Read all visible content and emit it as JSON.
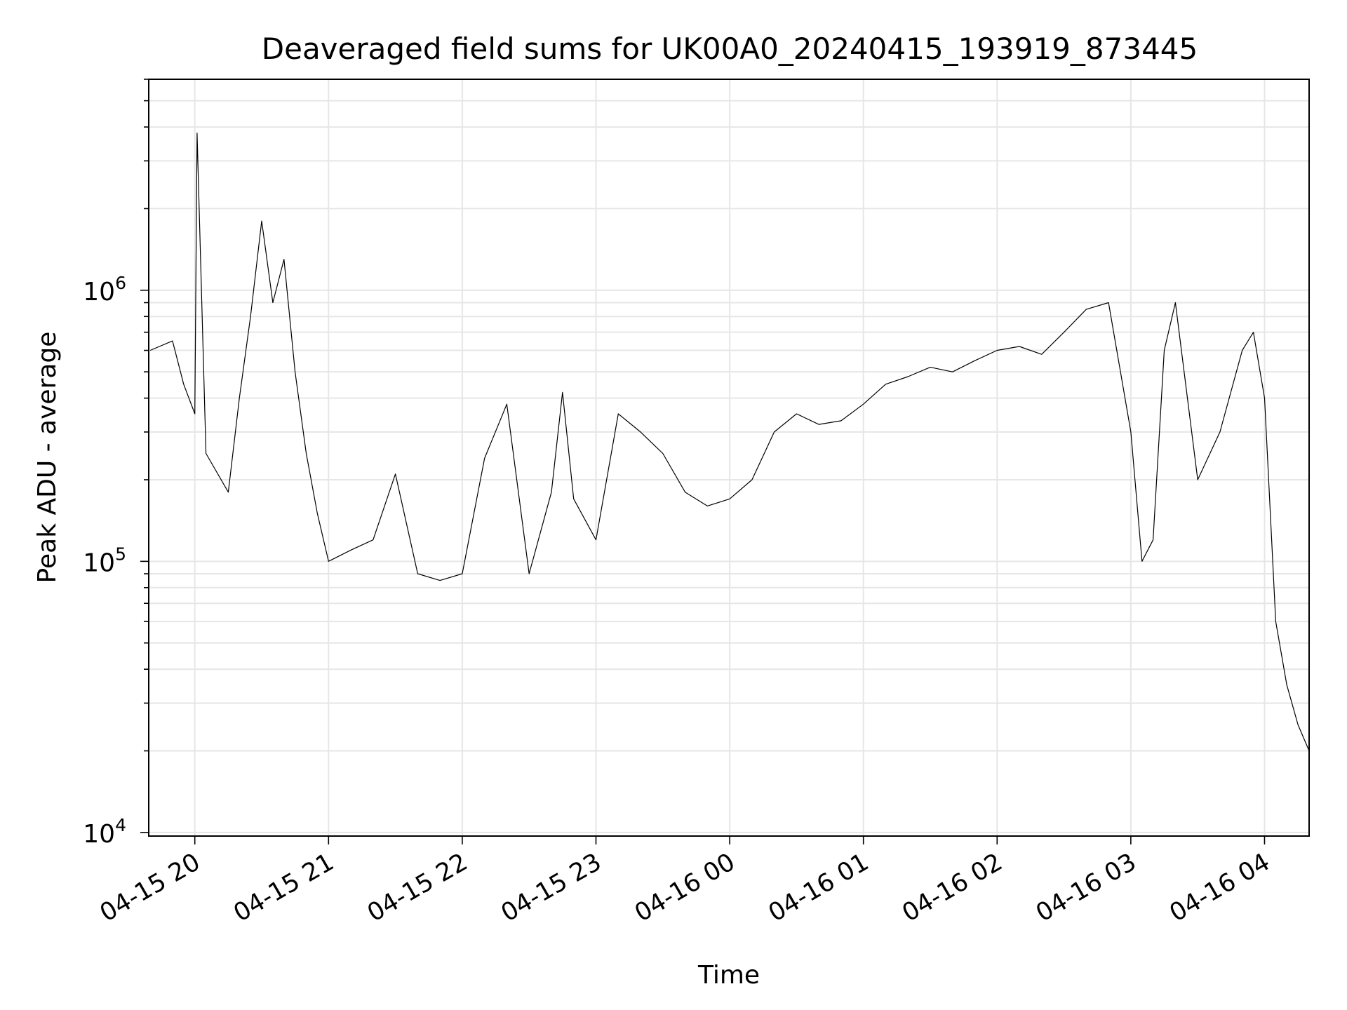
{
  "chart_data": {
    "type": "line",
    "title": "Deaveraged field sums for UK00A0_20240415_193919_873445",
    "xlabel": "Time",
    "ylabel": "Peak ADU - average",
    "y_scale": "log",
    "ylim": [
      9700,
      6000000
    ],
    "xlim": [
      "2024-04-15 19:39:19",
      "2024-04-16 04:20:00"
    ],
    "grid": true,
    "x_ticks": [
      {
        "time": "2024-04-15 20:00",
        "label": "04-15 20"
      },
      {
        "time": "2024-04-15 21:00",
        "label": "04-15 21"
      },
      {
        "time": "2024-04-15 22:00",
        "label": "04-15 22"
      },
      {
        "time": "2024-04-15 23:00",
        "label": "04-15 23"
      },
      {
        "time": "2024-04-16 00:00",
        "label": "04-16 00"
      },
      {
        "time": "2024-04-16 01:00",
        "label": "04-16 01"
      },
      {
        "time": "2024-04-16 02:00",
        "label": "04-16 02"
      },
      {
        "time": "2024-04-16 03:00",
        "label": "04-16 03"
      },
      {
        "time": "2024-04-16 04:00",
        "label": "04-16 04"
      }
    ],
    "y_ticks": [
      {
        "value": 10000,
        "base": "10",
        "exp": "4"
      },
      {
        "value": 100000,
        "base": "10",
        "exp": "5"
      },
      {
        "value": 1000000,
        "base": "10",
        "exp": "6"
      }
    ],
    "series": [
      {
        "color": "#000000",
        "points": [
          [
            "2024-04-15 19:40",
            600000
          ],
          [
            "2024-04-15 19:50",
            650000
          ],
          [
            "2024-04-15 19:55",
            450000
          ],
          [
            "2024-04-15 20:00",
            350000
          ],
          [
            "2024-04-15 20:01",
            3800000
          ],
          [
            "2024-04-15 20:05",
            250000
          ],
          [
            "2024-04-15 20:15",
            180000
          ],
          [
            "2024-04-15 20:20",
            400000
          ],
          [
            "2024-04-15 20:25",
            800000
          ],
          [
            "2024-04-15 20:30",
            1800000
          ],
          [
            "2024-04-15 20:35",
            900000
          ],
          [
            "2024-04-15 20:40",
            1300000
          ],
          [
            "2024-04-15 20:45",
            500000
          ],
          [
            "2024-04-15 20:50",
            250000
          ],
          [
            "2024-04-15 20:55",
            150000
          ],
          [
            "2024-04-15 21:00",
            100000
          ],
          [
            "2024-04-15 21:10",
            110000
          ],
          [
            "2024-04-15 21:20",
            120000
          ],
          [
            "2024-04-15 21:30",
            210000
          ],
          [
            "2024-04-15 21:40",
            90000
          ],
          [
            "2024-04-15 21:50",
            85000
          ],
          [
            "2024-04-15 22:00",
            90000
          ],
          [
            "2024-04-15 22:10",
            240000
          ],
          [
            "2024-04-15 22:20",
            380000
          ],
          [
            "2024-04-15 22:30",
            90000
          ],
          [
            "2024-04-15 22:40",
            180000
          ],
          [
            "2024-04-15 22:45",
            420000
          ],
          [
            "2024-04-15 22:50",
            170000
          ],
          [
            "2024-04-15 23:00",
            120000
          ],
          [
            "2024-04-15 23:10",
            350000
          ],
          [
            "2024-04-15 23:20",
            300000
          ],
          [
            "2024-04-15 23:30",
            250000
          ],
          [
            "2024-04-15 23:40",
            180000
          ],
          [
            "2024-04-15 23:50",
            160000
          ],
          [
            "2024-04-16 00:00",
            170000
          ],
          [
            "2024-04-16 00:10",
            200000
          ],
          [
            "2024-04-16 00:20",
            300000
          ],
          [
            "2024-04-16 00:30",
            350000
          ],
          [
            "2024-04-16 00:40",
            320000
          ],
          [
            "2024-04-16 00:50",
            330000
          ],
          [
            "2024-04-16 01:00",
            380000
          ],
          [
            "2024-04-16 01:10",
            450000
          ],
          [
            "2024-04-16 01:20",
            480000
          ],
          [
            "2024-04-16 01:30",
            520000
          ],
          [
            "2024-04-16 01:40",
            500000
          ],
          [
            "2024-04-16 01:50",
            550000
          ],
          [
            "2024-04-16 02:00",
            600000
          ],
          [
            "2024-04-16 02:10",
            620000
          ],
          [
            "2024-04-16 02:20",
            580000
          ],
          [
            "2024-04-16 02:30",
            700000
          ],
          [
            "2024-04-16 02:40",
            850000
          ],
          [
            "2024-04-16 02:50",
            900000
          ],
          [
            "2024-04-16 03:00",
            300000
          ],
          [
            "2024-04-16 03:05",
            100000
          ],
          [
            "2024-04-16 03:10",
            120000
          ],
          [
            "2024-04-16 03:15",
            600000
          ],
          [
            "2024-04-16 03:20",
            900000
          ],
          [
            "2024-04-16 03:30",
            200000
          ],
          [
            "2024-04-16 03:40",
            300000
          ],
          [
            "2024-04-16 03:50",
            600000
          ],
          [
            "2024-04-16 03:55",
            700000
          ],
          [
            "2024-04-16 04:00",
            400000
          ],
          [
            "2024-04-16 04:05",
            60000
          ],
          [
            "2024-04-16 04:10",
            35000
          ],
          [
            "2024-04-16 04:15",
            25000
          ],
          [
            "2024-04-16 04:20",
            20000
          ]
        ]
      }
    ]
  }
}
